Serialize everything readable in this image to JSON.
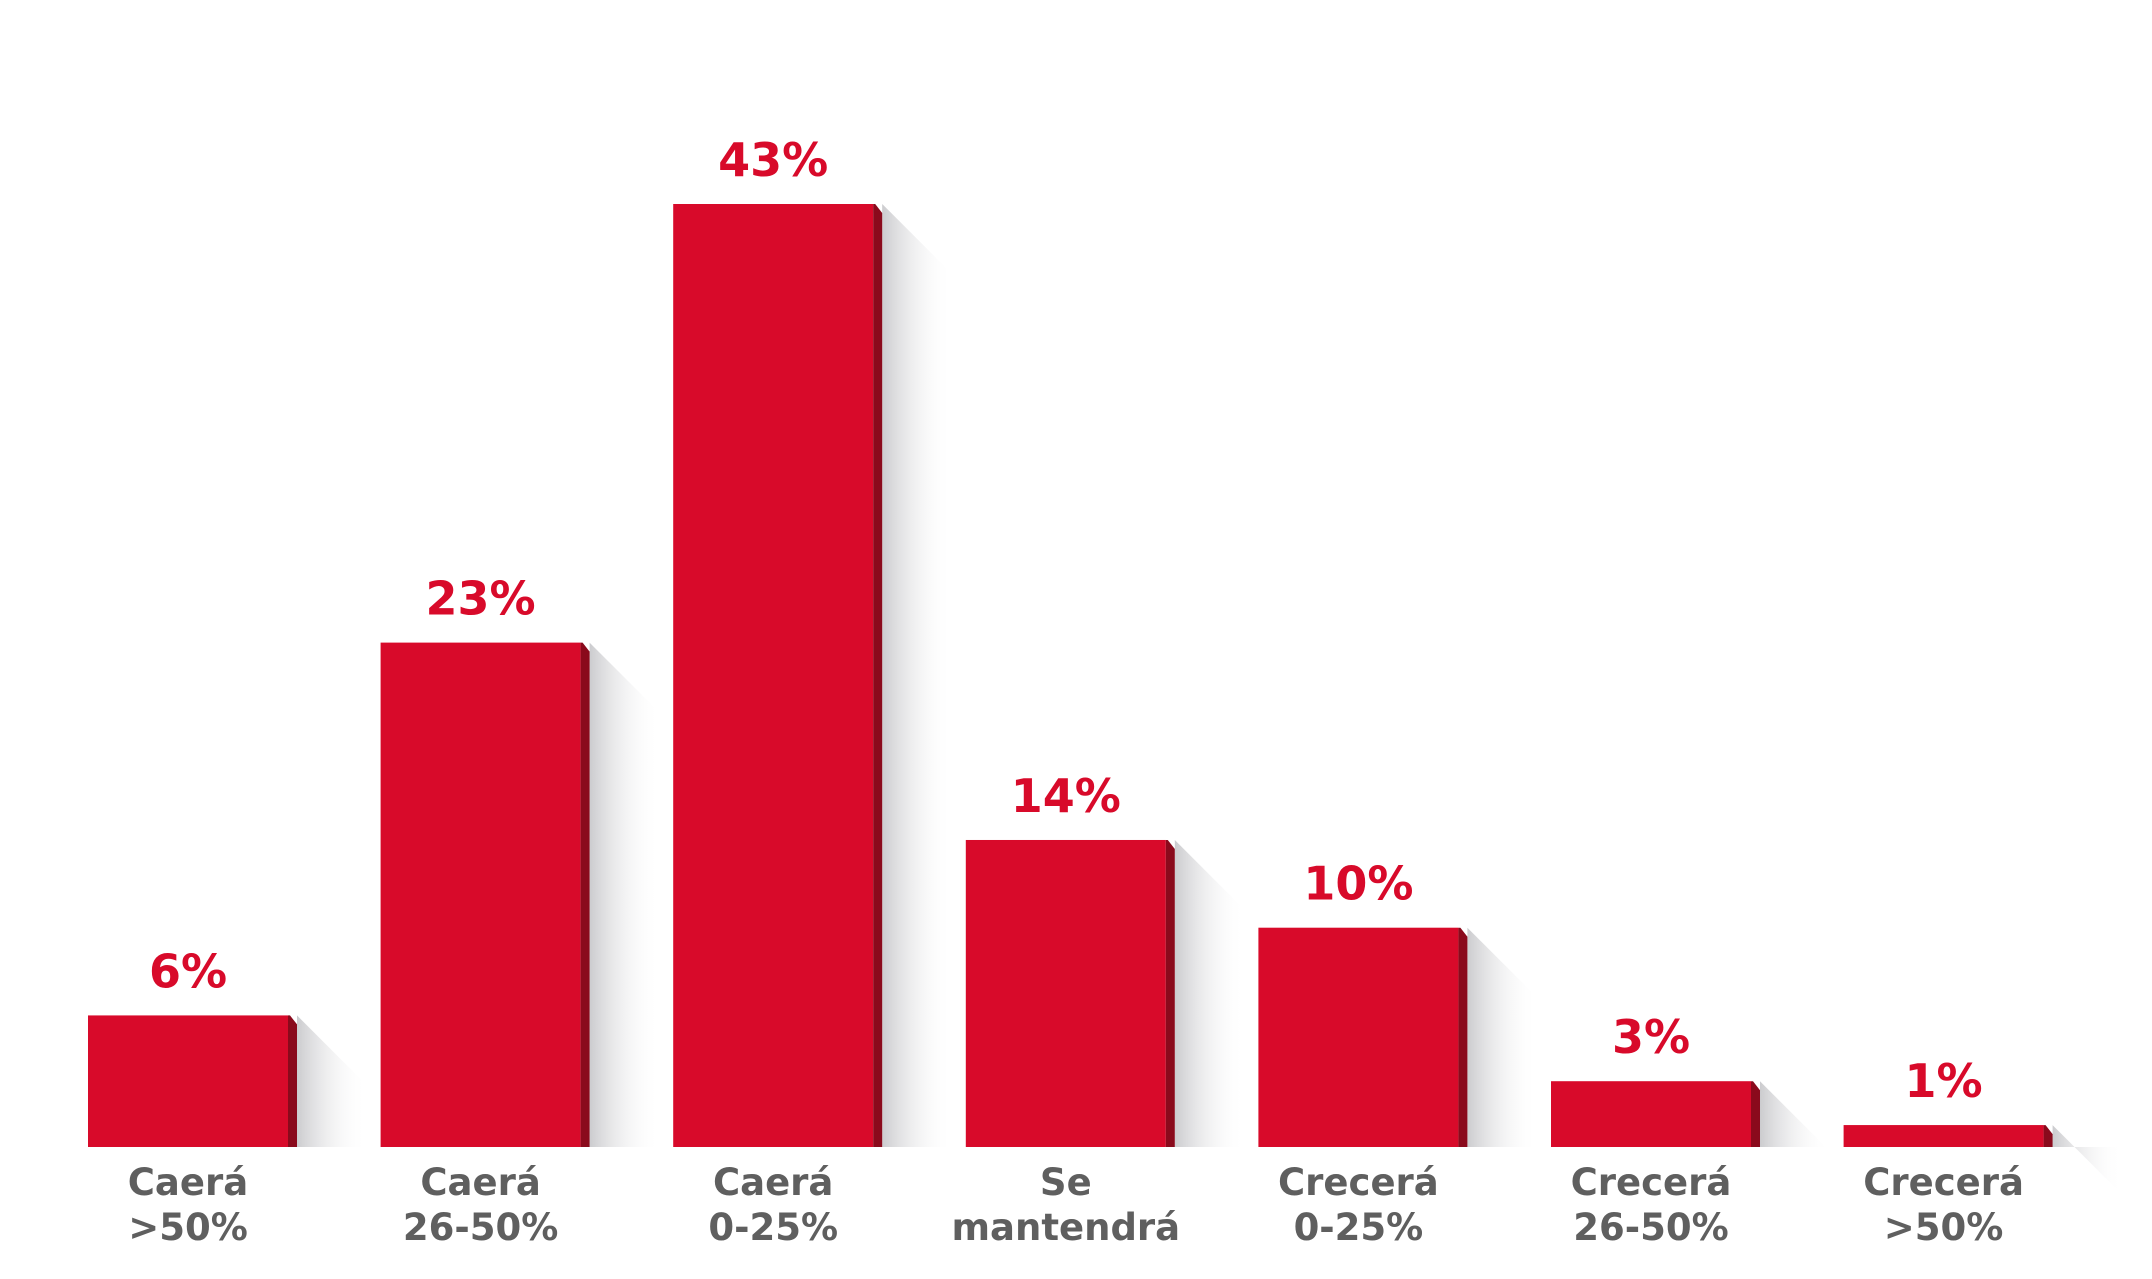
{
  "chart_data": {
    "type": "bar",
    "categories": [
      [
        "Caerá",
        ">50%"
      ],
      [
        "Caerá",
        "26-50%"
      ],
      [
        "Caerá",
        "0-25%"
      ],
      [
        "Se",
        "mantendrá"
      ],
      [
        "Crecerá",
        "0-25%"
      ],
      [
        "Crecerá",
        "26-50%"
      ],
      [
        "Crecerá",
        ">50%"
      ]
    ],
    "values": [
      6,
      23,
      43,
      14,
      10,
      3,
      1
    ],
    "value_labels": [
      "6%",
      "23%",
      "43%",
      "14%",
      "10%",
      "3%",
      "1%"
    ],
    "title": "",
    "xlabel": "",
    "ylabel": "",
    "ylim": [
      0,
      43
    ],
    "grid": false,
    "colors": {
      "bar": "#d80a2a",
      "bar_side": "#8a0a1c",
      "value_text": "#d80a2a",
      "category_text": "#5f5f5f",
      "shadow": "#c9c9cc"
    }
  }
}
